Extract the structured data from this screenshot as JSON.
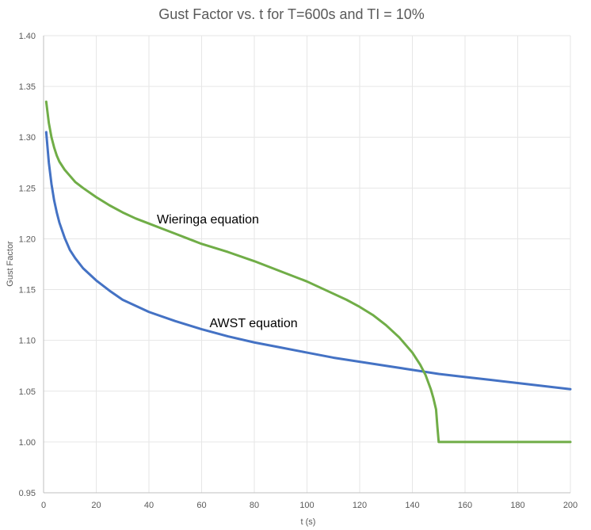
{
  "chart_data": {
    "type": "line",
    "title": "Gust Factor vs. t for T=600s and TI = 10%",
    "xlabel": "t (s)",
    "ylabel": "Gust Factor",
    "xlim": [
      0,
      200
    ],
    "ylim": [
      0.95,
      1.4
    ],
    "x_ticks": [
      0,
      20,
      40,
      60,
      80,
      100,
      120,
      140,
      160,
      180,
      200
    ],
    "y_ticks": [
      0.95,
      1.0,
      1.05,
      1.1,
      1.15,
      1.2,
      1.25,
      1.3,
      1.35,
      1.4
    ],
    "grid": true,
    "colors": {
      "awst": "#4472c4",
      "wieringa": "#70ad47"
    },
    "annotations": [
      {
        "text": "Wieringa equation",
        "x": 43,
        "y": 1.215
      },
      {
        "text": "AWST equation",
        "x": 63,
        "y": 1.113
      }
    ],
    "series": [
      {
        "name": "AWST equation",
        "color": "#4472c4",
        "x": [
          1,
          2,
          3,
          4,
          5,
          6,
          8,
          10,
          12,
          15,
          20,
          25,
          30,
          40,
          50,
          60,
          70,
          80,
          90,
          100,
          110,
          120,
          130,
          140,
          150,
          160,
          170,
          180,
          190,
          200
        ],
        "y": [
          1.305,
          1.275,
          1.254,
          1.238,
          1.226,
          1.216,
          1.201,
          1.189,
          1.181,
          1.171,
          1.159,
          1.149,
          1.14,
          1.128,
          1.119,
          1.111,
          1.104,
          1.098,
          1.093,
          1.088,
          1.083,
          1.079,
          1.075,
          1.071,
          1.067,
          1.064,
          1.061,
          1.058,
          1.055,
          1.052
        ]
      },
      {
        "name": "Wieringa equation",
        "color": "#70ad47",
        "x": [
          1,
          2,
          3,
          4,
          5,
          6,
          8,
          10,
          12,
          15,
          20,
          25,
          30,
          35,
          40,
          45,
          50,
          55,
          60,
          70,
          80,
          90,
          100,
          110,
          115,
          120,
          125,
          130,
          135,
          140,
          143,
          145,
          147,
          148,
          149,
          149.5,
          150,
          160,
          170,
          180,
          190,
          200
        ],
        "y": [
          1.335,
          1.314,
          1.3,
          1.29,
          1.282,
          1.276,
          1.268,
          1.262,
          1.256,
          1.25,
          1.241,
          1.233,
          1.226,
          1.22,
          1.215,
          1.21,
          1.205,
          1.2,
          1.195,
          1.187,
          1.178,
          1.168,
          1.158,
          1.146,
          1.14,
          1.133,
          1.125,
          1.115,
          1.103,
          1.088,
          1.076,
          1.066,
          1.052,
          1.043,
          1.032,
          1.015,
          1.0,
          1.0,
          1.0,
          1.0,
          1.0,
          1.0
        ]
      }
    ]
  }
}
